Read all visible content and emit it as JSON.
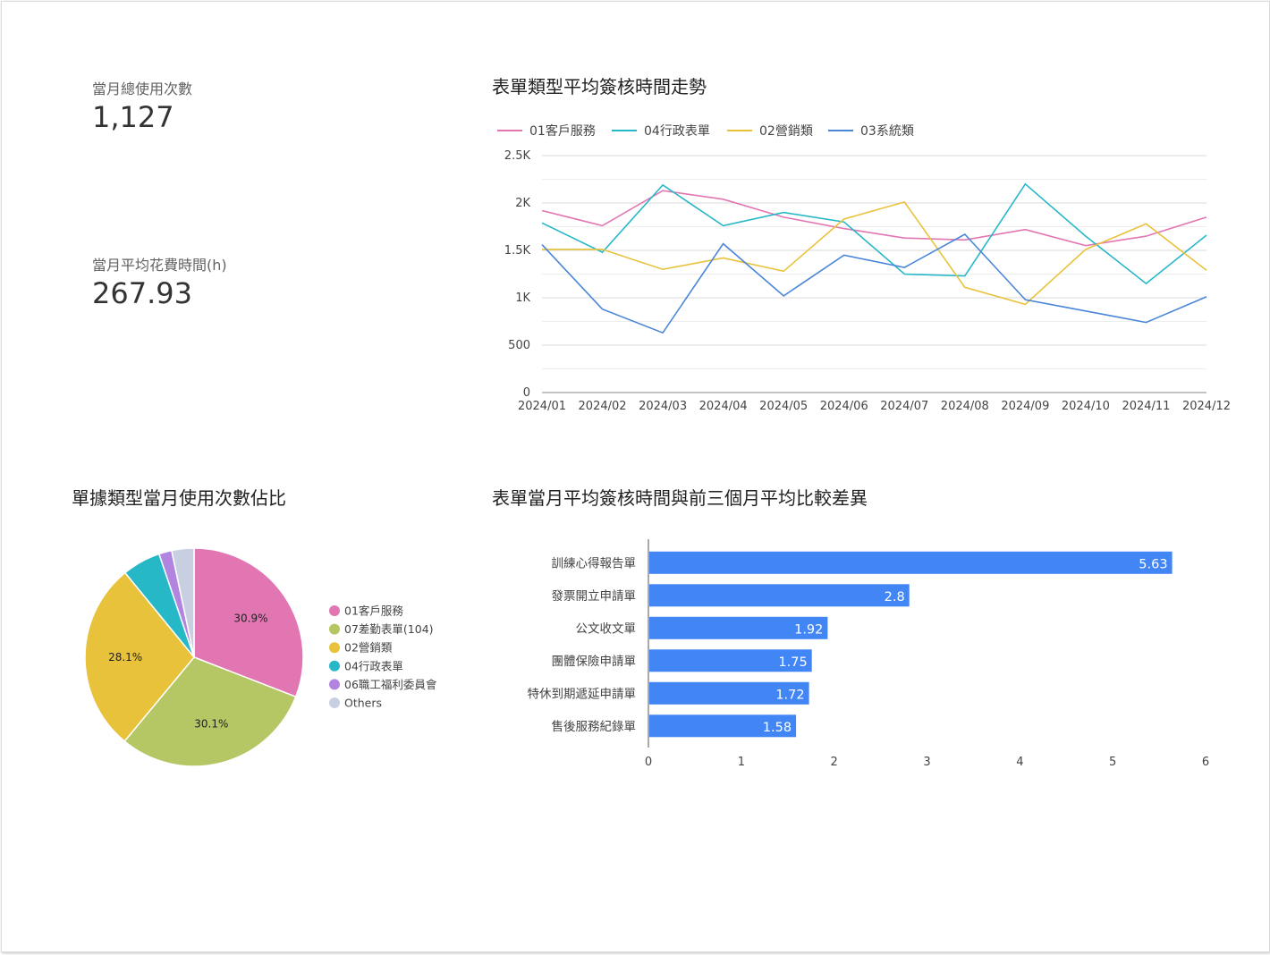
{
  "kpis": {
    "usage": {
      "label": "當月總使用次數",
      "value": "1,127"
    },
    "avg_time": {
      "label": "當月平均花費時間(h)",
      "value": "267.93"
    }
  },
  "titles": {
    "line": "表單類型平均簽核時間走勢",
    "pie": "單據類型當月使用次數佔比",
    "bar": "表單當月平均簽核時間與前三個月平均比較差異"
  },
  "colors": {
    "s01": "#e276b2",
    "s04": "#27b8c8",
    "s02": "#e8c23a",
    "s03": "#4a86d8",
    "s07": "#b5c764",
    "s06": "#b184e0",
    "others": "#c8cfe0",
    "bar": "#4285f4"
  },
  "chart_data": [
    {
      "type": "line",
      "title": "表單類型平均簽核時間走勢",
      "x": [
        "2024/01",
        "2024/02",
        "2024/03",
        "2024/04",
        "2024/05",
        "2024/06",
        "2024/07",
        "2024/08",
        "2024/09",
        "2024/10",
        "2024/11",
        "2024/12"
      ],
      "yticks": [
        "0",
        "500",
        "1K",
        "1.5K",
        "2K",
        "2.5K"
      ],
      "ylim": [
        0,
        2500
      ],
      "legend_position": "top",
      "grid": true,
      "series": [
        {
          "name": "01客戶服務",
          "color": "#e276b2",
          "values": [
            1920,
            1760,
            2130,
            2040,
            1850,
            1730,
            1630,
            1610,
            1720,
            1550,
            1650,
            1850
          ]
        },
        {
          "name": "04行政表單",
          "color": "#27b8c8",
          "values": [
            1790,
            1480,
            2190,
            1760,
            1900,
            1800,
            1250,
            1230,
            2200,
            1650,
            1150,
            1660
          ]
        },
        {
          "name": "02營銷類",
          "color": "#e8c23a",
          "values": [
            1510,
            1510,
            1300,
            1420,
            1280,
            1830,
            2010,
            1110,
            930,
            1510,
            1780,
            1290
          ]
        },
        {
          "name": "03系統類",
          "color": "#4a86d8",
          "values": [
            1560,
            880,
            630,
            1570,
            1020,
            1450,
            1320,
            1670,
            980,
            860,
            740,
            1010
          ]
        }
      ]
    },
    {
      "type": "pie",
      "title": "單據類型當月使用次數佔比",
      "legend_position": "right",
      "slices": [
        {
          "name": "01客戶服務",
          "value": 30.9,
          "label": "30.9%",
          "color": "#e276b2"
        },
        {
          "name": "07差勤表單(104)",
          "value": 30.1,
          "label": "30.1%",
          "color": "#b5c764"
        },
        {
          "name": "02營銷類",
          "value": 28.1,
          "label": "28.1%",
          "color": "#e8c23a"
        },
        {
          "name": "04行政表單",
          "value": 5.7,
          "label": "",
          "color": "#27b8c8"
        },
        {
          "name": "06職工福利委員會",
          "value": 1.9,
          "label": "",
          "color": "#b184e0"
        },
        {
          "name": "Others",
          "value": 3.3,
          "label": "",
          "color": "#c8cfe0"
        }
      ]
    },
    {
      "type": "bar",
      "orientation": "horizontal",
      "title": "表單當月平均簽核時間與前三個月平均比較差異",
      "categories": [
        "訓練心得報告單",
        "發票開立申請單",
        "公文收文單",
        "團體保險申請單",
        "特休到期遞延申請單",
        "售後服務紀錄單"
      ],
      "values": [
        5.63,
        2.8,
        1.92,
        1.75,
        1.72,
        1.58
      ],
      "value_labels": [
        "5.63",
        "2.8",
        "1.92",
        "1.75",
        "1.72",
        "1.58"
      ],
      "xticks": [
        "0",
        "1",
        "2",
        "3",
        "4",
        "5",
        "6"
      ],
      "xlim": [
        0,
        6
      ],
      "color": "#4285f4"
    }
  ]
}
